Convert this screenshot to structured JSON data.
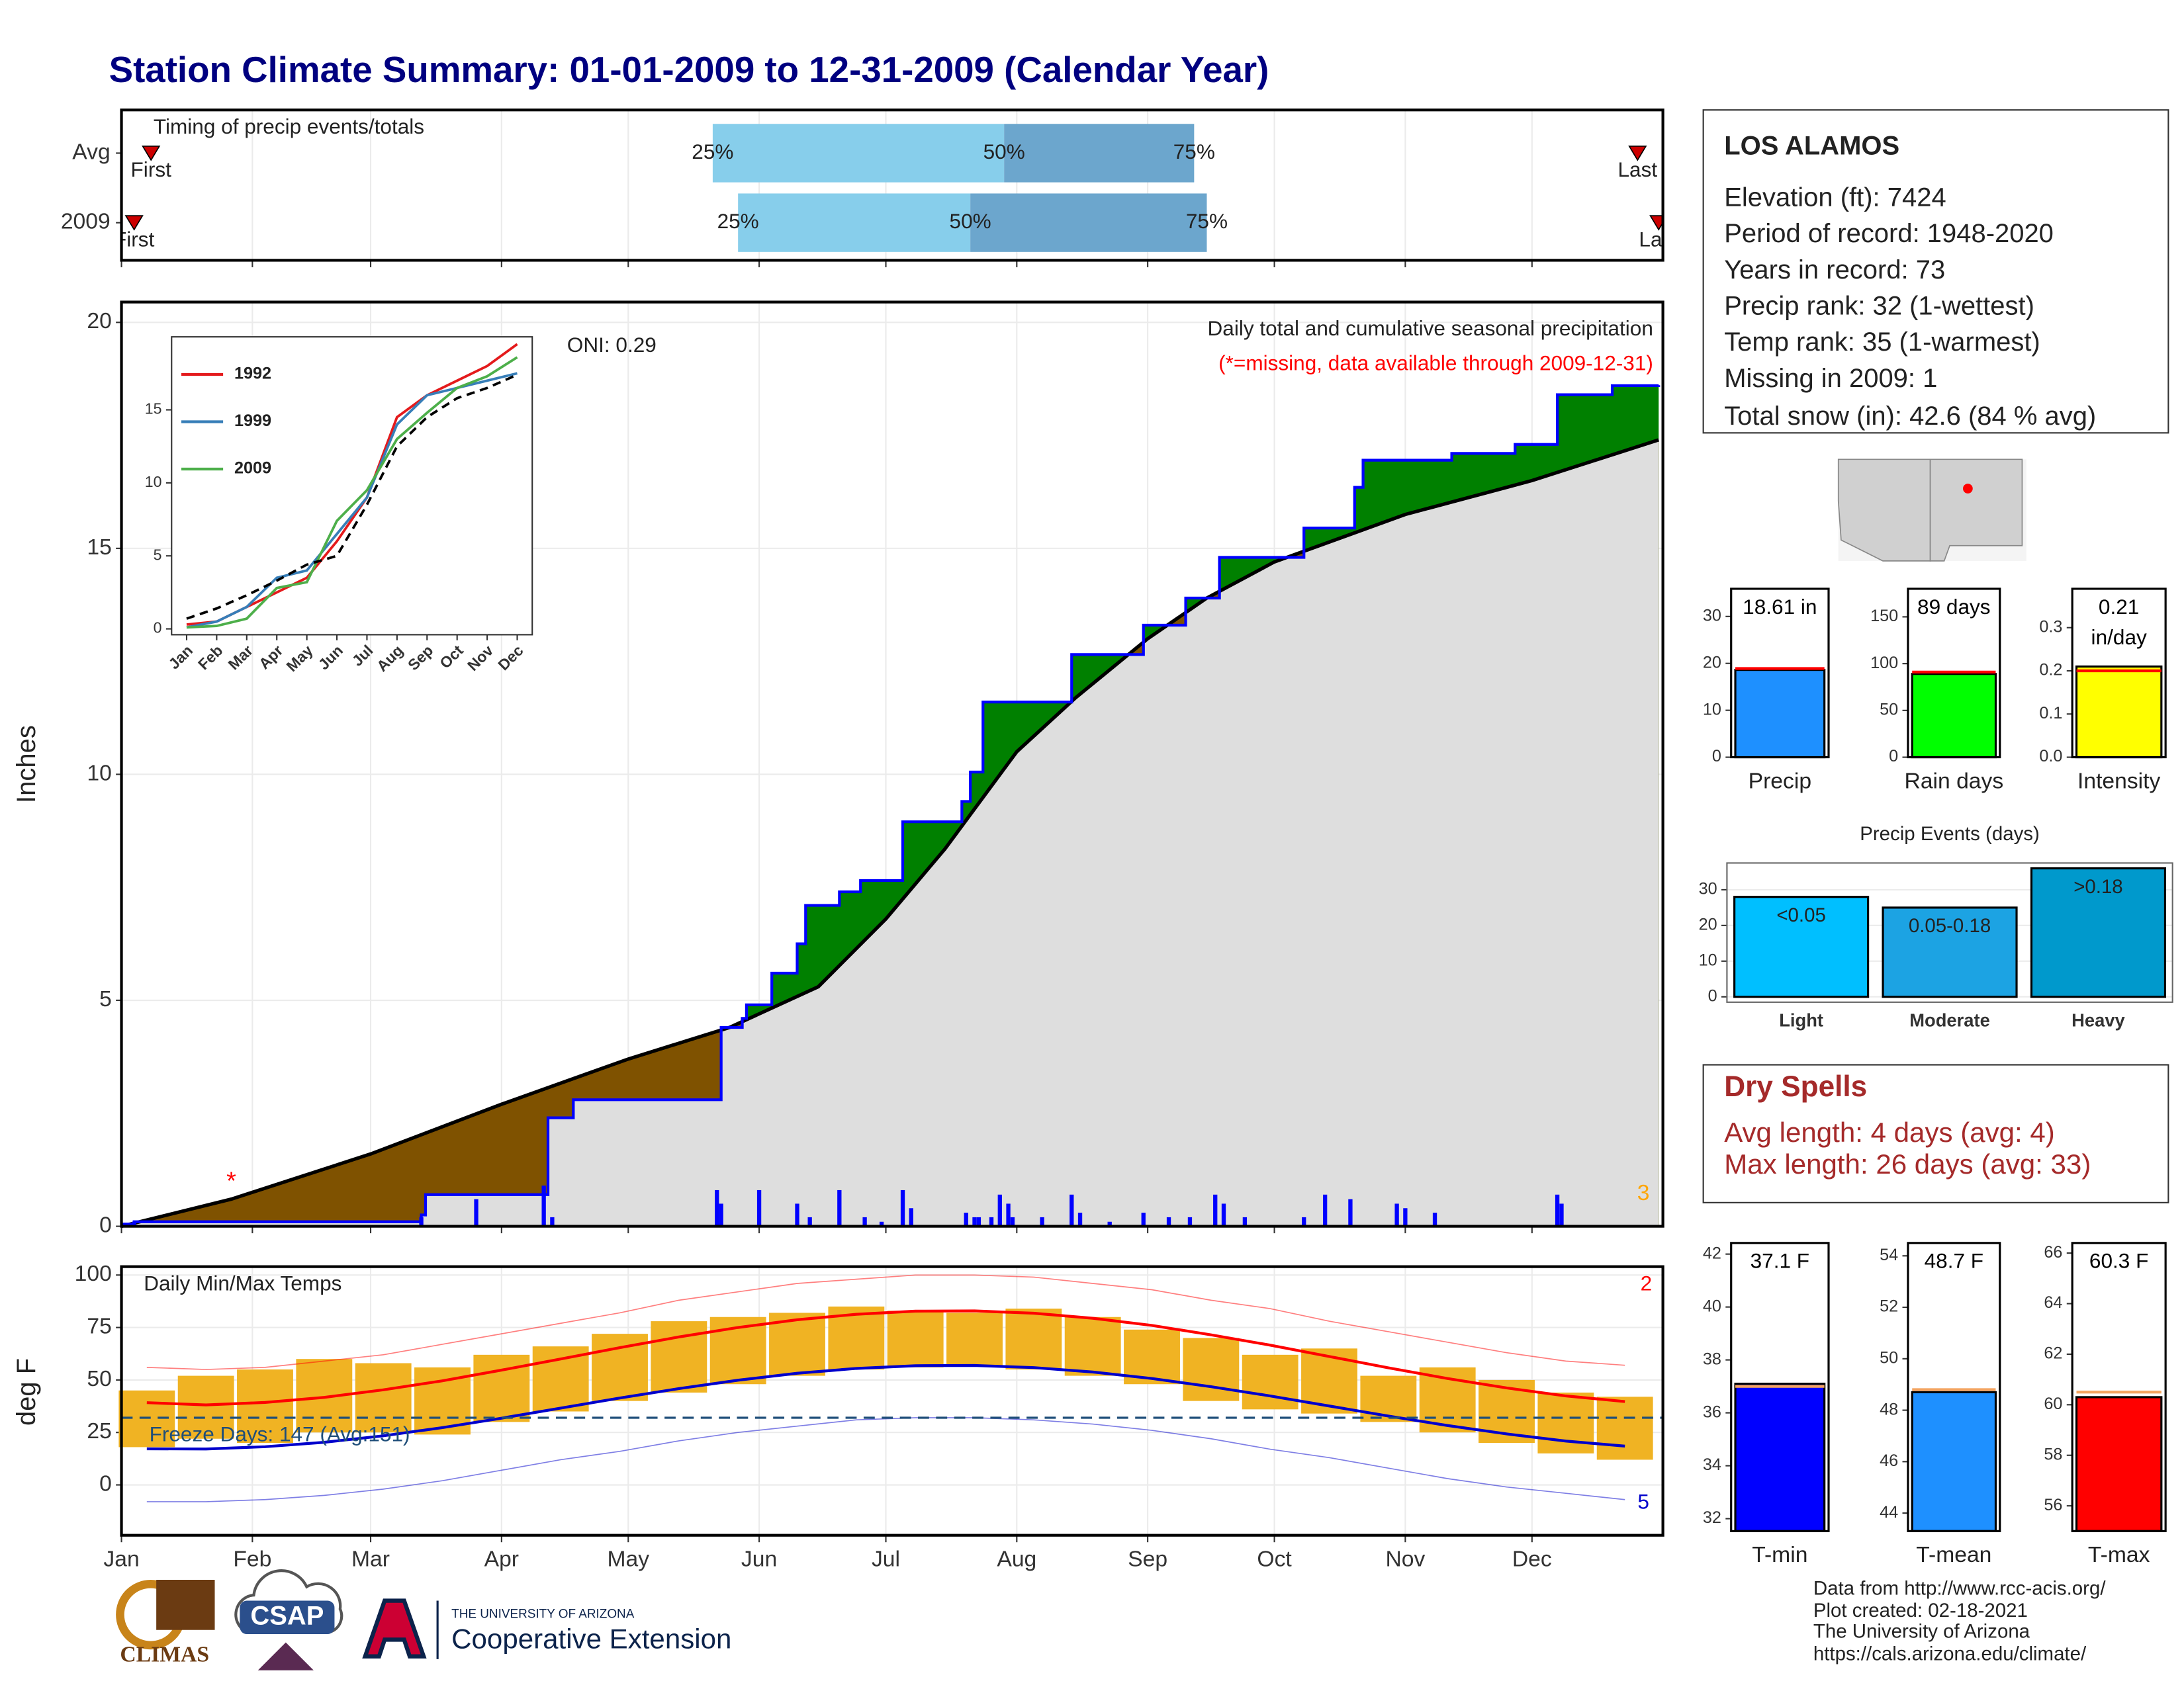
{
  "title": "Station Climate Summary: 01-01-2009 to 12-31-2009 (Calendar Year)",
  "station": {
    "name": "LOS ALAMOS",
    "lines": [
      "Elevation (ft): 7424",
      "Period of record: 1948-2020",
      "Years in record: 73",
      "Precip rank: 32 (1-wettest)",
      "Temp rank: 35 (1-warmest)",
      "Missing in 2009: 1",
      "Total snow (in): 42.6 (84 % avg)"
    ]
  },
  "dry_spells": {
    "title": "Dry Spells",
    "lines": [
      "Avg length: 4 days (avg: 4)",
      "Max length: 26 days (avg: 33)"
    ]
  },
  "credits": [
    "Data from http://www.rcc-acis.org/",
    "Plot created: 02-18-2021",
    "The University of Arizona",
    "https://cals.arizona.edu/climate/"
  ],
  "logos": {
    "climas": "CLIMAS",
    "csap": "CSAP",
    "university": "THE UNIVERSITY OF ARIZONA",
    "unit": "Cooperative Extension"
  },
  "chart_data": [
    {
      "type": "timing",
      "title": "Timing of precip events/totals",
      "categories": [
        "Avg",
        "2009"
      ],
      "first": [
        8,
        4
      ],
      "q25": [
        141,
        147
      ],
      "q50": [
        210,
        202
      ],
      "q75": [
        255,
        258
      ],
      "last": [
        360,
        365
      ],
      "first_label": "First",
      "last_label": "Last",
      "quartile_labels": [
        "25%",
        "50%",
        "75%"
      ],
      "colors": [
        "#87ceeb",
        "#6ca6cd"
      ],
      "marker_color": "#cc0000"
    },
    {
      "type": "cumulative",
      "title": "Daily total and cumulative seasonal precipitation",
      "subtitle": "(*=missing, data available through 2009-12-31)",
      "annotation": "ONI: 0.29",
      "count_label": 3,
      "ylabel": "Inches",
      "ylim": [
        0,
        20.45
      ],
      "yticks": [
        0,
        5,
        10,
        15,
        20
      ],
      "grid": true,
      "current": {
        "x": [
          1,
          4,
          71,
          72,
          73,
          101,
          102,
          108,
          142,
          143,
          148,
          149,
          155,
          161,
          163,
          171,
          176,
          186,
          200,
          202,
          205,
          226,
          243,
          253,
          261,
          281,
          293,
          295,
          316,
          331,
          341,
          354,
          365
        ],
        "values": [
          0.05,
          0.1,
          0.1,
          0.25,
          0.7,
          0.7,
          2.4,
          2.8,
          2.8,
          4.4,
          4.6,
          4.9,
          5.6,
          6.25,
          7.1,
          7.4,
          7.65,
          8.95,
          9.4,
          10.05,
          11.6,
          12.65,
          13.3,
          13.9,
          14.8,
          15.45,
          16.35,
          16.95,
          17.1,
          17.3,
          18.4,
          18.6,
          18.61
        ],
        "color": "#0000ff"
      },
      "average": {
        "x": [
          1,
          27,
          60,
          91,
          121,
          145,
          166,
          182,
          196,
          213,
          227,
          244,
          258,
          274,
          305,
          335,
          365
        ],
        "values": [
          0,
          0.6,
          1.6,
          2.7,
          3.7,
          4.4,
          5.3,
          6.8,
          8.35,
          10.5,
          11.7,
          13.0,
          13.9,
          14.7,
          15.75,
          16.5,
          17.4
        ],
        "color": "#000000"
      },
      "above_color": "#008000",
      "below_color": "#7f5200",
      "base_color": "#dedede",
      "daily": {
        "x": [
          4,
          72,
          85,
          101,
          103,
          142,
          143,
          152,
          161,
          164,
          171,
          177,
          181,
          186,
          188,
          201,
          203,
          204,
          207,
          209,
          211,
          212,
          219,
          226,
          228,
          235,
          243,
          249,
          254,
          260,
          262,
          267,
          281,
          286,
          292,
          303,
          305,
          312,
          341,
          342
        ],
        "values": [
          0.1,
          0.2,
          0.6,
          0.9,
          0.2,
          0.8,
          0.5,
          0.8,
          0.5,
          0.2,
          0.8,
          0.2,
          0.1,
          0.8,
          0.4,
          0.3,
          0.2,
          0.2,
          0.2,
          0.7,
          0.5,
          0.2,
          0.2,
          0.7,
          0.3,
          0.1,
          0.3,
          0.2,
          0.2,
          0.7,
          0.5,
          0.2,
          0.2,
          0.7,
          0.6,
          0.5,
          0.4,
          0.3,
          0.7,
          0.5
        ],
        "color": "#0000ff"
      },
      "missing": {
        "x": [
          27
        ],
        "symbol": "*",
        "color": "#ff0000"
      },
      "count_color": "#ffa500"
    },
    {
      "type": "line",
      "categories": [
        "Jan",
        "Feb",
        "Mar",
        "Apr",
        "May",
        "Jun",
        "Jul",
        "Aug",
        "Sep",
        "Oct",
        "Nov",
        "Dec"
      ],
      "ylim": [
        -0.4,
        20
      ],
      "yticks": [
        0,
        5,
        10,
        15
      ],
      "series": [
        {
          "name": "1992",
          "color": "#e41a1c",
          "values": [
            0.3,
            0.5,
            1.5,
            2.5,
            3.5,
            6,
            9,
            14.5,
            16,
            17,
            18,
            19.5
          ]
        },
        {
          "name": "1999",
          "color": "#377eb8",
          "values": [
            0.1,
            0.5,
            1.5,
            3.5,
            4,
            6.5,
            9,
            14,
            16,
            16.5,
            17,
            17.5
          ]
        },
        {
          "name": "2009",
          "color": "#4daf4a",
          "values": [
            0.1,
            0.2,
            0.7,
            2.8,
            3.2,
            7.4,
            9.5,
            13,
            14.8,
            16.5,
            17.3,
            18.6
          ]
        }
      ],
      "average": {
        "values": [
          0.7,
          1.4,
          2.3,
          3.3,
          4.4,
          5.0,
          8.5,
          12.5,
          14.5,
          15.8,
          16.5,
          17.4
        ],
        "color": "#000000"
      }
    },
    {
      "type": "temperature",
      "title": "Daily Min/Max Temps",
      "ylabel": "deg F",
      "xlim": [
        1,
        366
      ],
      "xticks": [
        {
          "value": 1,
          "label": "Jan"
        },
        {
          "value": 32,
          "label": "Feb"
        },
        {
          "value": 60,
          "label": "Mar"
        },
        {
          "value": 91,
          "label": "Apr"
        },
        {
          "value": 121,
          "label": "May"
        },
        {
          "value": 152,
          "label": "Jun"
        },
        {
          "value": 182,
          "label": "Jul"
        },
        {
          "value": 213,
          "label": "Aug"
        },
        {
          "value": 244,
          "label": "Sep"
        },
        {
          "value": 274,
          "label": "Oct"
        },
        {
          "value": 305,
          "label": "Nov"
        },
        {
          "value": 335,
          "label": "Dec"
        }
      ],
      "ylim": [
        -24,
        104
      ],
      "yticks": [
        0,
        25,
        50,
        75,
        100
      ],
      "grid": true,
      "x": [
        7,
        21,
        35,
        49,
        63,
        77,
        91,
        105,
        119,
        133,
        147,
        161,
        175,
        189,
        203,
        217,
        231,
        245,
        259,
        273,
        287,
        301,
        315,
        329,
        343,
        357
      ],
      "obs_max": [
        45,
        52,
        55,
        60,
        58,
        56,
        62,
        66,
        72,
        78,
        80,
        82,
        85,
        83,
        82,
        84,
        80,
        74,
        70,
        62,
        65,
        52,
        56,
        50,
        44,
        42
      ],
      "obs_min": [
        18,
        22,
        20,
        25,
        25,
        24,
        30,
        35,
        40,
        44,
        48,
        52,
        55,
        56,
        57,
        55,
        52,
        48,
        40,
        36,
        34,
        30,
        25,
        20,
        15,
        12
      ],
      "normal_max": [
        39.2,
        38.1,
        39.3,
        41.7,
        45.3,
        49.6,
        54.7,
        60.0,
        65.4,
        70.5,
        75.0,
        78.7,
        81.3,
        82.8,
        82.9,
        81.8,
        79.4,
        76.0,
        71.5,
        66.6,
        61.2,
        55.8,
        50.7,
        46.2,
        42.4,
        39.7
      ],
      "normal_min": [
        17.2,
        17.1,
        18.2,
        20.3,
        23.4,
        27.3,
        31.8,
        36.6,
        41.4,
        45.9,
        49.9,
        53.2,
        55.5,
        56.8,
        56.9,
        55.9,
        53.8,
        50.7,
        46.8,
        42.4,
        37.6,
        32.8,
        28.3,
        24.3,
        20.9,
        18.5
      ],
      "record_max": [
        56,
        55,
        56,
        59,
        62,
        67,
        72,
        77,
        82,
        88,
        92,
        96,
        98,
        100,
        100,
        99,
        96,
        93,
        88,
        84,
        78,
        73,
        68,
        63,
        59,
        57
      ],
      "record_min": [
        -8,
        -8,
        -7,
        -5,
        -2,
        2,
        7,
        12,
        16,
        21,
        25,
        28,
        31,
        32,
        32,
        31,
        29,
        26,
        22,
        17,
        13,
        8,
        3,
        -1,
        -4,
        -7
      ],
      "obs_color": "#f0b323",
      "max_color": "#ff0000",
      "min_color": "#0000cc",
      "freeze": {
        "value": 32,
        "label": "Freeze Days: 147 (Avg:151)",
        "color": "#1f4e79"
      },
      "record_high_count": 2,
      "record_low_count": 5
    },
    {
      "type": "bar",
      "categories": [
        "Precip"
      ],
      "values": [
        18.61
      ],
      "value_labels": [
        "18.61 in"
      ],
      "average": [
        18.9
      ],
      "color": "#1e90ff",
      "average_color": "#ff0000",
      "ylim": [
        0,
        35.9
      ],
      "yticks": [
        0,
        10,
        20,
        30
      ]
    },
    {
      "type": "bar",
      "categories": [
        "Rain days"
      ],
      "values": [
        89
      ],
      "value_labels": [
        "89 days"
      ],
      "average": [
        91
      ],
      "color": "#00ff00",
      "average_color": "#ff0000",
      "ylim": [
        0,
        180
      ],
      "yticks": [
        0,
        50,
        100,
        150
      ]
    },
    {
      "type": "bar",
      "categories": [
        "Intensity"
      ],
      "values": [
        0.21
      ],
      "value_labels": [
        "0.21 in/day"
      ],
      "average": [
        0.2
      ],
      "color": "#ffff00",
      "average_color": "#ff0000",
      "ylim": [
        0,
        0.39
      ],
      "yticks": [
        {
          "value": 0,
          "label": "0.0"
        },
        0.1,
        0.2,
        0.3
      ]
    },
    {
      "type": "bar",
      "title": "Precip Events (days)",
      "categories": [
        "Light",
        "Moderate",
        "Heavy"
      ],
      "values": [
        28,
        25,
        36
      ],
      "ranges": [
        "<0.05",
        "0.05-0.18",
        ">0.18"
      ],
      "colors": [
        "#00bfff",
        "#1ca3e3",
        "#0099cc"
      ],
      "ylim": [
        -1.5,
        37.5
      ],
      "yticks": [
        0,
        10,
        20,
        30
      ],
      "grid": true
    },
    {
      "type": "bar",
      "categories": [
        "T-min"
      ],
      "values": [
        37.1
      ],
      "value_labels": [
        "37.1 F"
      ],
      "average": [
        37.0
      ],
      "color": "#0000ff",
      "average_color": "#f4a460",
      "ylim": [
        31.53,
        42.42
      ],
      "yticks": [
        32,
        34,
        36,
        38,
        40,
        42
      ]
    },
    {
      "type": "bar",
      "categories": [
        "T-mean"
      ],
      "values": [
        48.7
      ],
      "value_labels": [
        "48.7 F"
      ],
      "average": [
        48.8
      ],
      "color": "#1e90ff",
      "average_color": "#f4a460",
      "ylim": [
        43.3,
        54.5
      ],
      "yticks": [
        44,
        46,
        48,
        50,
        52,
        54
      ]
    },
    {
      "type": "bar",
      "categories": [
        "T-max"
      ],
      "values": [
        60.3
      ],
      "value_labels": [
        "60.3 F"
      ],
      "average": [
        60.5
      ],
      "color": "#ff0000",
      "average_color": "#f4a460",
      "ylim": [
        55.0,
        66.4
      ],
      "yticks": [
        56,
        58,
        60,
        62,
        64,
        66
      ]
    }
  ]
}
